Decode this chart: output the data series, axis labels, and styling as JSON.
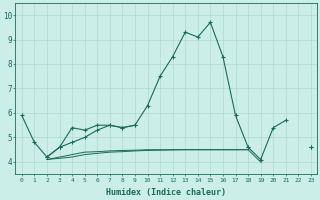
{
  "x": [
    0,
    1,
    2,
    3,
    4,
    5,
    6,
    7,
    8,
    9,
    10,
    11,
    12,
    13,
    14,
    15,
    16,
    17,
    18,
    19,
    20,
    21,
    22,
    23
  ],
  "line1": [
    5.9,
    4.8,
    4.2,
    4.6,
    5.4,
    5.3,
    5.5,
    5.5,
    5.4,
    5.5,
    6.3,
    7.5,
    8.3,
    9.3,
    9.1,
    9.7,
    8.3,
    5.9,
    4.6,
    4.1,
    5.4,
    5.7,
    null,
    4.6
  ],
  "line2": [
    null,
    null,
    4.2,
    4.6,
    4.8,
    5.0,
    5.3,
    5.5,
    5.4,
    5.5,
    null,
    null,
    null,
    null,
    null,
    null,
    null,
    null,
    4.6,
    null,
    null,
    null,
    null,
    4.6
  ],
  "line3": [
    null,
    null,
    4.1,
    4.15,
    4.2,
    4.3,
    4.35,
    4.4,
    4.42,
    4.45,
    4.47,
    4.48,
    4.49,
    4.5,
    4.5,
    4.5,
    4.5,
    4.5,
    4.5,
    4.0,
    null,
    null,
    null,
    4.6
  ],
  "line4": [
    null,
    null,
    4.1,
    4.2,
    4.3,
    4.4,
    4.42,
    4.45,
    4.47,
    4.48,
    4.5,
    4.5,
    4.5,
    4.5,
    4.5,
    4.5,
    4.5,
    4.5,
    4.5,
    null,
    null,
    null,
    null,
    4.6
  ],
  "color": "#1a6b5a",
  "bg_color": "#cceee8",
  "grid_color": "#aed8d2",
  "xlabel": "Humidex (Indice chaleur)",
  "ylim": [
    3.5,
    10.5
  ],
  "yticks": [
    4,
    5,
    6,
    7,
    8,
    9,
    10
  ],
  "xticks": [
    0,
    1,
    2,
    3,
    4,
    5,
    6,
    7,
    8,
    9,
    10,
    11,
    12,
    13,
    14,
    15,
    16,
    17,
    18,
    19,
    20,
    21,
    22,
    23
  ]
}
